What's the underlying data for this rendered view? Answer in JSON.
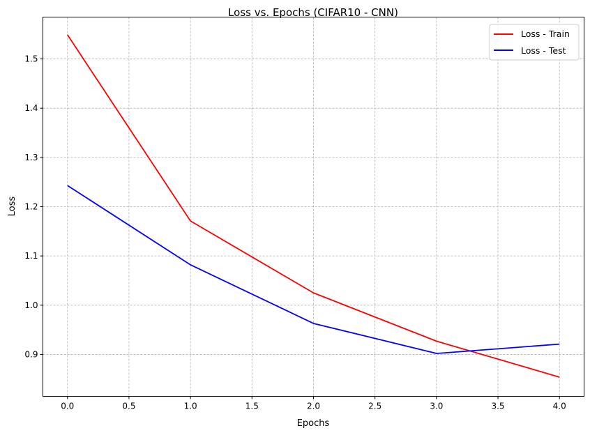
{
  "chart_data": {
    "type": "line",
    "title": "Loss vs. Epochs (CIFAR10 - CNN)",
    "xlabel": "Epochs",
    "ylabel": "Loss",
    "x": [
      0,
      1,
      2,
      3,
      4
    ],
    "xlim": [
      -0.2,
      4.2
    ],
    "ylim": [
      0.815,
      1.585
    ],
    "xticks": [
      "0.0",
      "0.5",
      "1.0",
      "1.5",
      "2.0",
      "2.5",
      "3.0",
      "3.5",
      "4.0"
    ],
    "yticks": [
      "0.9",
      "1.0",
      "1.1",
      "1.2",
      "1.3",
      "1.4",
      "1.5"
    ],
    "grid": true,
    "legend_position": "top-right",
    "series": [
      {
        "name": "Loss - Train",
        "color": "#ff0000",
        "values": [
          1.549,
          1.171,
          1.025,
          0.927,
          0.854
        ]
      },
      {
        "name": "Loss - Test",
        "color": "#0000ff",
        "values": [
          1.243,
          1.082,
          0.963,
          0.902,
          0.921
        ]
      }
    ]
  }
}
